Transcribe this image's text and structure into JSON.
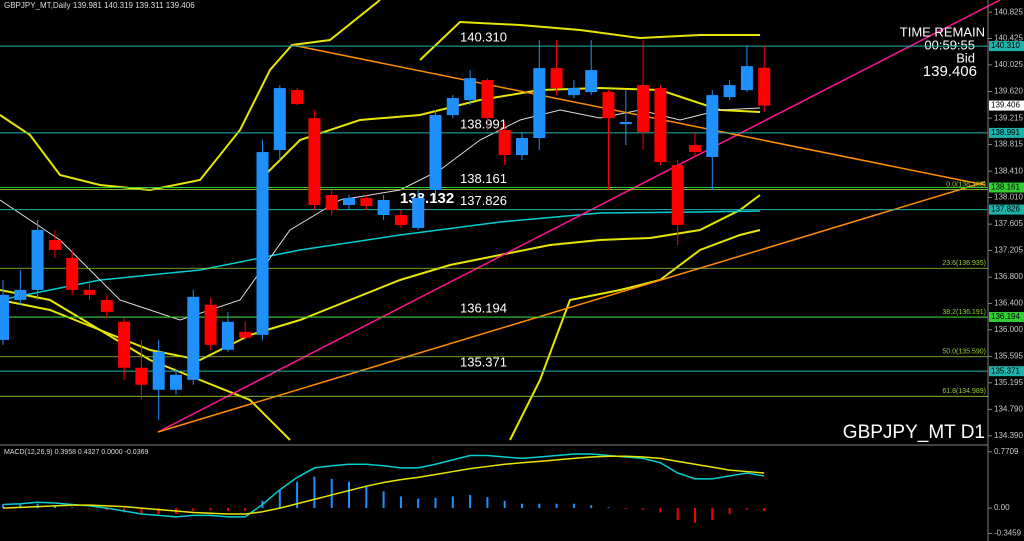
{
  "chart_data": [
    {
      "type": "candlestick",
      "title": "GBPJPY_MT,Daily  139.981 140.319 139.311 139.406",
      "symbol_label": "GBPJPY_MT D1",
      "time_remain": [
        "TIME REMAIN",
        "00:59:55",
        "Bid",
        "139.406"
      ],
      "fib_anchor_label": "138.132",
      "up_color": "#1e90ff",
      "down_color": "#ff0000",
      "categories": [
        null,
        null,
        null,
        null,
        null,
        null,
        null,
        null,
        null,
        null,
        null,
        null,
        null,
        null,
        null,
        null,
        null,
        null,
        null,
        null,
        null,
        null,
        null,
        null,
        null,
        null,
        null,
        null,
        null,
        null,
        null,
        null,
        null,
        null,
        null,
        null,
        null,
        null,
        null,
        null,
        null,
        null,
        null,
        null,
        null
      ],
      "open": [
        135.847,
        136.454,
        136.606,
        137.365,
        137.092,
        136.606,
        136.454,
        136.121,
        135.423,
        135.089,
        135.089,
        135.24,
        136.379,
        135.696,
        135.969,
        135.923,
        138.731,
        139.641,
        139.216,
        138.048,
        137.896,
        138.002,
        137.744,
        137.744,
        137.547,
        138.124,
        139.262,
        139.489,
        139.793,
        139.034,
        138.655,
        138.913,
        139.975,
        139.565,
        139.611,
        139.611,
        139.125,
        139.717,
        139.672,
        138.503,
        138.807,
        138.625,
        139.535,
        139.641,
        139.981
      ],
      "high": [
        136.758,
        136.91,
        137.668,
        137.517,
        137.213,
        136.758,
        136.53,
        136.181,
        135.847,
        135.847,
        135.392,
        136.606,
        136.485,
        136.272,
        136.121,
        138.882,
        139.717,
        139.672,
        139.338,
        138.124,
        138.048,
        138.048,
        138.048,
        137.82,
        138.124,
        139.338,
        139.565,
        139.945,
        139.823,
        139.156,
        139.004,
        140.4,
        140.4,
        139.793,
        140.4,
        139.641,
        139.641,
        140.4,
        139.717,
        138.579,
        139.004,
        139.641,
        139.793,
        140.324,
        140.319
      ],
      "low": [
        135.772,
        136.379,
        136.454,
        137.092,
        136.53,
        136.454,
        136.181,
        135.24,
        134.937,
        134.633,
        135.013,
        135.165,
        135.696,
        135.665,
        135.847,
        135.847,
        138.579,
        139.414,
        137.82,
        137.744,
        137.82,
        137.82,
        137.668,
        137.547,
        137.517,
        137.972,
        139.216,
        139.414,
        139.034,
        138.503,
        138.579,
        138.731,
        139.565,
        139.52,
        139.565,
        138.124,
        138.807,
        138.731,
        138.503,
        137.289,
        138.625,
        138.124,
        139.489,
        139.611,
        139.311
      ],
      "close": [
        136.53,
        136.606,
        137.517,
        137.213,
        136.606,
        136.53,
        136.272,
        135.423,
        135.165,
        135.665,
        135.316,
        136.5,
        135.772,
        136.121,
        135.878,
        138.7,
        139.672,
        139.429,
        137.896,
        137.82,
        138.002,
        137.881,
        137.972,
        137.593,
        138.002,
        139.262,
        139.52,
        139.823,
        139.216,
        138.655,
        138.913,
        139.975,
        139.672,
        139.672,
        139.945,
        139.216,
        139.156,
        139.004,
        138.549,
        137.593,
        138.7,
        139.565,
        139.717,
        140.005,
        139.406
      ],
      "ylim": [
        134.28,
        141.01
      ],
      "yticks": [
        140.825,
        140.425,
        140.025,
        {
          "value": 139.62,
          "label": "139.620"
        },
        139.215,
        138.815,
        {
          "value": 138.41,
          "label": "138.410"
        },
        {
          "value": 138.01,
          "label": "138.010"
        },
        137.605,
        137.205,
        {
          "value": 136.8,
          "label": "136.800"
        },
        {
          "value": 136.4,
          "label": "136.400"
        },
        {
          "value": 136,
          "label": "136.000"
        },
        135.595,
        135.195,
        {
          "value": 134.79,
          "label": "134.790"
        },
        {
          "value": 134.39,
          "label": "134.390"
        }
      ],
      "levels": [
        {
          "value": 140.31,
          "label": "140.310",
          "color": "#20b2aa"
        },
        {
          "value": 138.991,
          "label": "138.991",
          "color": "#20b2aa"
        },
        {
          "value": 138.161,
          "label": "138.161",
          "color": "#32cd32"
        },
        {
          "value": 137.826,
          "label": "137.826",
          "color": "#20b2aa"
        },
        {
          "value": 136.194,
          "label": "136.194",
          "color": "#32cd32"
        },
        {
          "value": 135.371,
          "label": "135.371",
          "color": "#20b2aa"
        }
      ],
      "fib_levels": [
        {
          "value": 138.132,
          "label": "0.0(138.132)"
        },
        {
          "value": 136.935,
          "label": "23.6(136.935)"
        },
        {
          "value": 136.191,
          "label": "38.2(136.191)"
        },
        {
          "value": 135.59,
          "label": "50.0(135.590)"
        },
        {
          "value": 134.989,
          "label": "61.8(134.989)"
        }
      ],
      "fib_color": "#9acd32",
      "bid": {
        "value": 139.406,
        "label": "139.406"
      }
    },
    {
      "type": "macd",
      "title": "MACD(12,26,9) 0.3958 0.4327 0.0000 -0.0369",
      "ylim": [
        -0.45,
        0.836
      ],
      "yticks": [
        0.7709,
        {
          "value": 0,
          "label": "0.00"
        },
        -0.3459
      ],
      "series": [
        {
          "color": "#00ced1",
          "values": [
            0.05,
            0.06,
            0.08,
            0.07,
            0.05,
            0.03,
            0.0,
            -0.04,
            -0.08,
            -0.1,
            -0.12,
            -0.1,
            -0.1,
            -0.12,
            -0.12,
            0.05,
            0.25,
            0.42,
            0.55,
            0.58,
            0.6,
            0.6,
            0.58,
            0.55,
            0.55,
            0.6,
            0.66,
            0.72,
            0.72,
            0.7,
            0.68,
            0.7,
            0.72,
            0.74,
            0.74,
            0.72,
            0.7,
            0.68,
            0.62,
            0.48,
            0.4,
            0.4,
            0.44,
            0.48,
            0.44
          ]
        },
        {
          "color": "#e6e600",
          "values": [
            0.0,
            0.01,
            0.02,
            0.03,
            0.04,
            0.04,
            0.03,
            0.02,
            0.0,
            -0.02,
            -0.04,
            -0.06,
            -0.07,
            -0.08,
            -0.08,
            -0.05,
            0.0,
            0.06,
            0.12,
            0.18,
            0.24,
            0.3,
            0.35,
            0.39,
            0.42,
            0.46,
            0.5,
            0.54,
            0.57,
            0.6,
            0.62,
            0.64,
            0.66,
            0.68,
            0.7,
            0.71,
            0.71,
            0.7,
            0.68,
            0.64,
            0.6,
            0.56,
            0.52,
            0.5,
            0.48
          ]
        }
      ],
      "histogram": {
        "up_color": "#1e90ff",
        "down_color": "#ff0000",
        "values": [
          0.05,
          0.05,
          0.06,
          0.04,
          0.01,
          -0.01,
          -0.03,
          -0.06,
          -0.08,
          -0.08,
          -0.08,
          -0.04,
          -0.03,
          -0.04,
          -0.04,
          0.1,
          0.25,
          0.36,
          0.43,
          0.4,
          0.36,
          0.3,
          0.23,
          0.16,
          0.13,
          0.14,
          0.16,
          0.18,
          0.15,
          0.1,
          0.06,
          0.06,
          0.06,
          0.06,
          0.04,
          0.01,
          -0.01,
          -0.02,
          -0.06,
          -0.16,
          -0.2,
          -0.16,
          -0.08,
          -0.02,
          -0.04
        ]
      }
    }
  ]
}
